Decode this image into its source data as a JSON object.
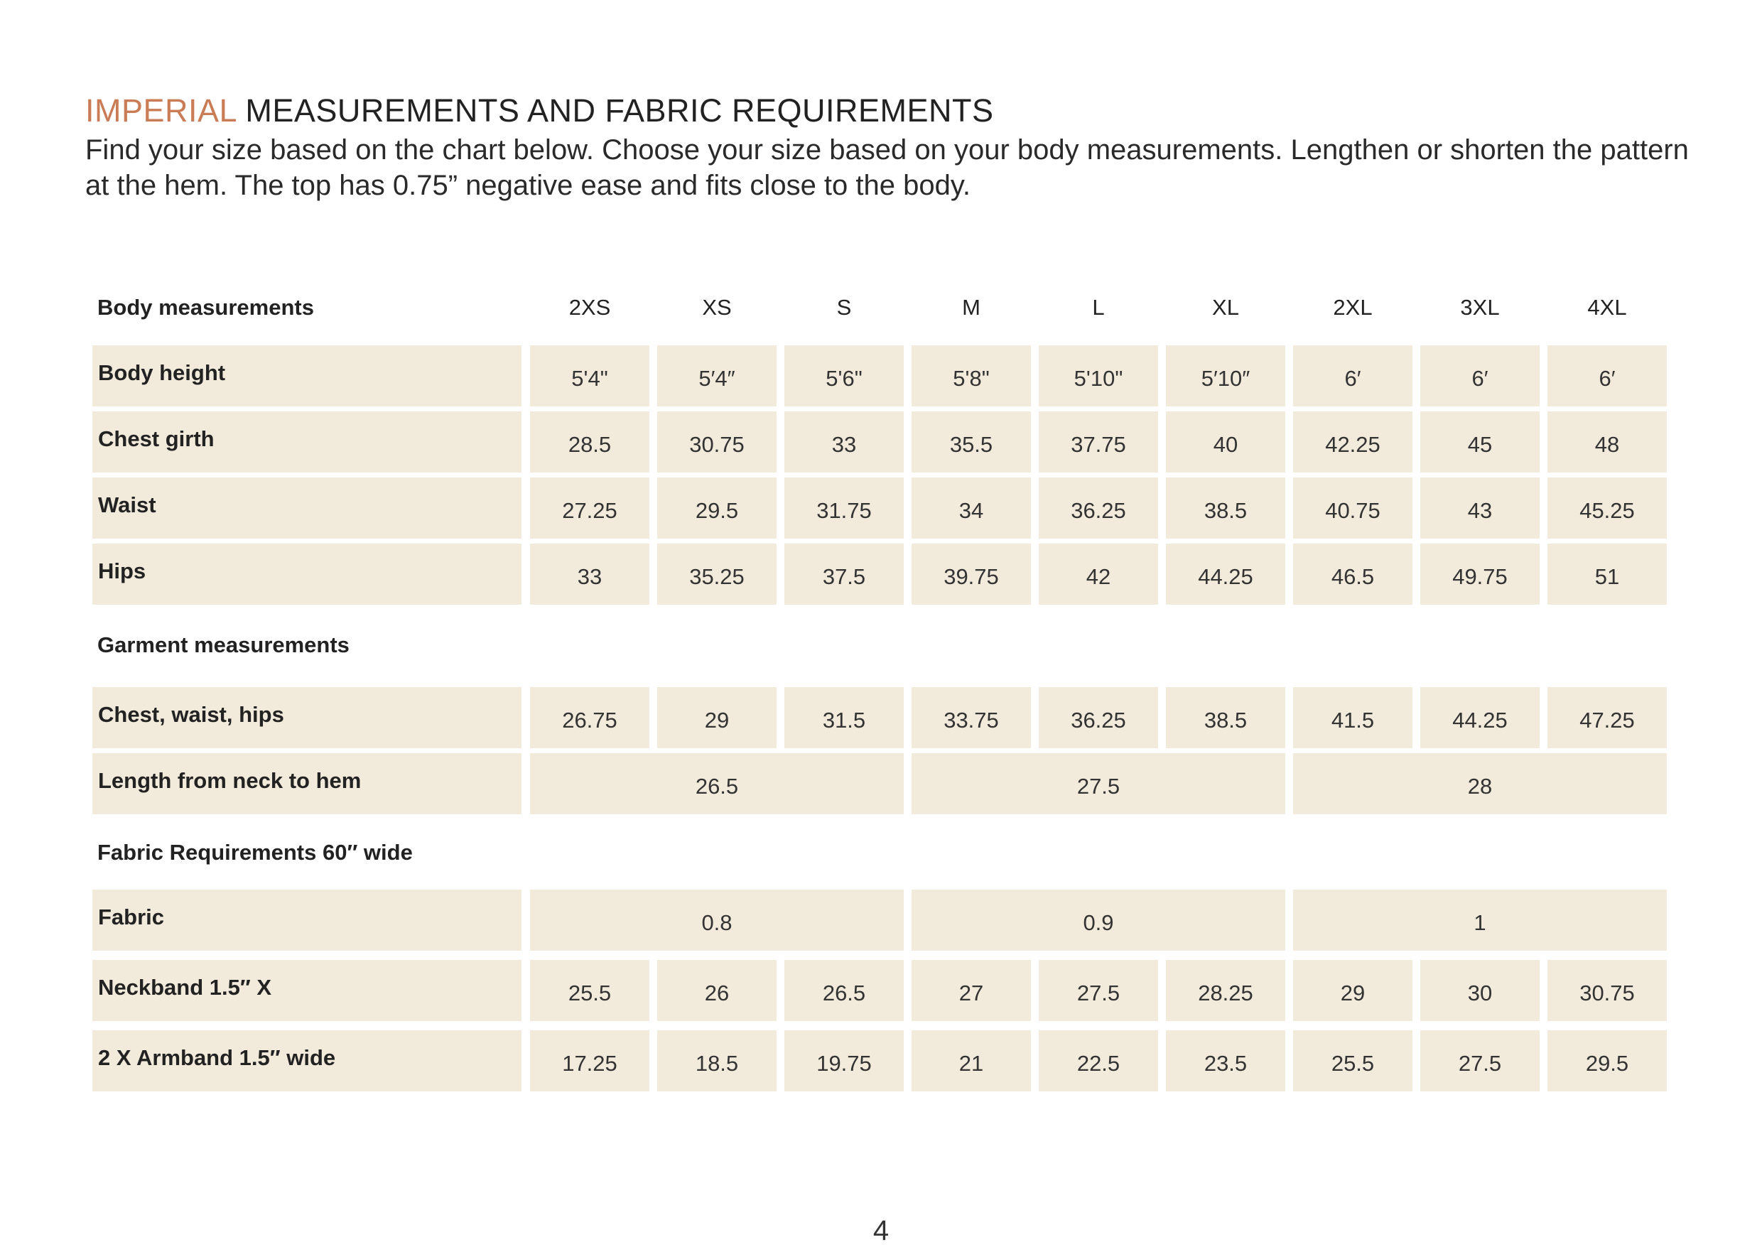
{
  "heading": {
    "accent": "IMPERIAL",
    "rest": " MEASUREMENTS AND FABRIC REQUIREMENTS"
  },
  "intro": "Find your size based on the chart below. Choose your size based on your body measurements. Lengthen or shorten the pattern at the hem. The top has 0.75” negative ease and fits close to the body.",
  "colors": {
    "accent": "#c97c55",
    "cell_bg": "#f2eadb"
  },
  "table": {
    "body_header": "Body measurements",
    "sizes": [
      "2XS",
      "XS",
      "S",
      "M",
      "L",
      "XL",
      "2XL",
      "3XL",
      "4XL"
    ],
    "body_rows": [
      {
        "label": "Body height",
        "values": [
          "5'4\"",
          "5′4″",
          "5'6\"",
          "5'8\"",
          "5'10\"",
          "5′10″",
          "6′",
          "6′",
          "6′"
        ]
      },
      {
        "label": "Chest girth",
        "values": [
          "28.5",
          "30.75",
          "33",
          "35.5",
          "37.75",
          "40",
          "42.25",
          "45",
          "48"
        ]
      },
      {
        "label": "Waist",
        "values": [
          "27.25",
          "29.5",
          "31.75",
          "34",
          "36.25",
          "38.5",
          "40.75",
          "43",
          "45.25"
        ]
      },
      {
        "label": "Hips",
        "values": [
          "33",
          "35.25",
          "37.5",
          "39.75",
          "42",
          "44.25",
          "46.5",
          "49.75",
          "51"
        ]
      }
    ],
    "garment_header": "Garment measurements",
    "garment_rows": [
      {
        "label": "Chest, waist, hips",
        "values": [
          "26.75",
          "29",
          "31.5",
          "33.75",
          "36.25",
          "38.5",
          "41.5",
          "44.25",
          "47.25"
        ]
      },
      {
        "label": "Length from neck to hem",
        "groups": [
          "26.5",
          "27.5",
          "28"
        ]
      }
    ],
    "fabric_header": "Fabric Requirements 60″ wide",
    "fabric_rows": [
      {
        "label": "Fabric",
        "groups": [
          "0.8",
          "0.9",
          "1"
        ]
      },
      {
        "label": "Neckband 1.5″ X",
        "values": [
          "25.5",
          "26",
          "26.5",
          "27",
          "27.5",
          "28.25",
          "29",
          "30",
          "30.75"
        ]
      },
      {
        "label": "2 X Armband 1.5″ wide",
        "values": [
          "17.25",
          "18.5",
          "19.75",
          "21",
          "22.5",
          "23.5",
          "25.5",
          "27.5",
          "29.5"
        ]
      }
    ]
  },
  "page_number": "4"
}
